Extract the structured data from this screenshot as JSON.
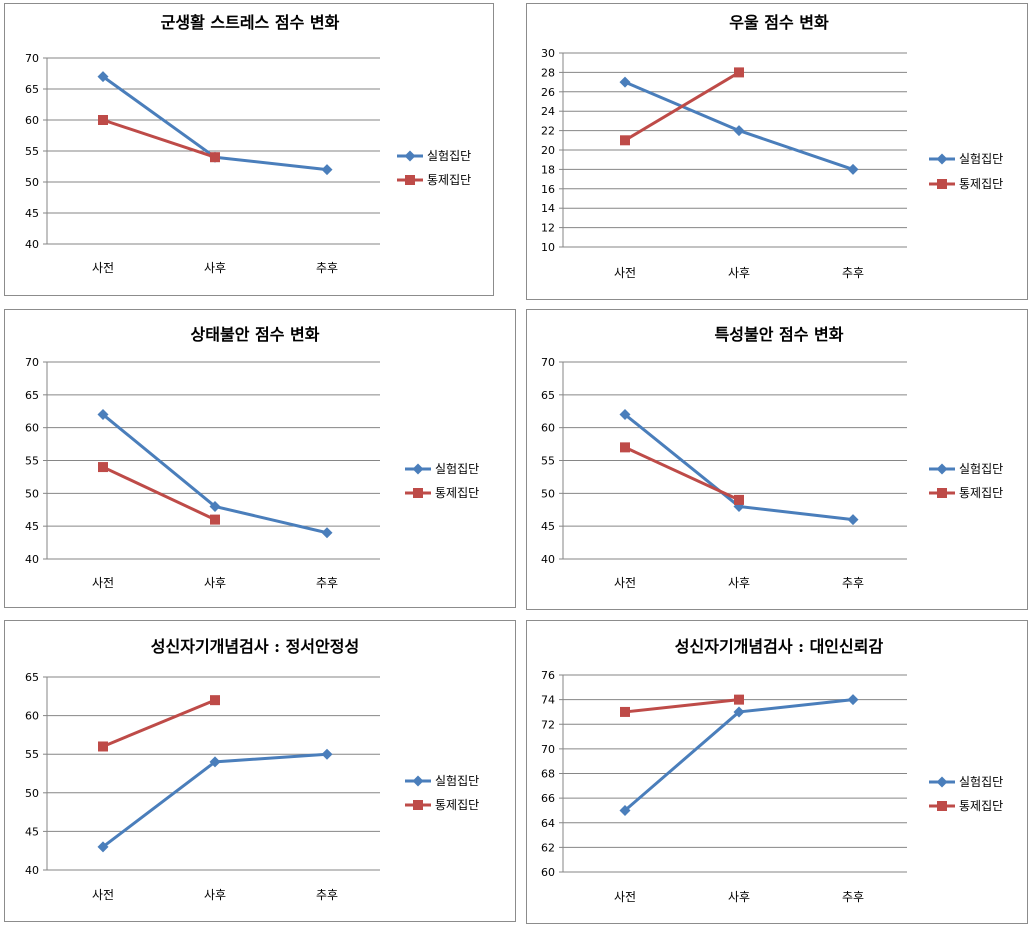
{
  "chart_data": [
    {
      "type": "line",
      "title": "군생활 스트레스 점수 변화",
      "categories": [
        "사전",
        "사후",
        "추후"
      ],
      "ylim": [
        40,
        70
      ],
      "yticks": [
        40,
        45,
        50,
        55,
        60,
        65,
        70
      ],
      "series": [
        {
          "name": "실험집단",
          "values": [
            67,
            54,
            52
          ]
        },
        {
          "name": "통제집단",
          "values": [
            60,
            54,
            null
          ]
        }
      ],
      "grid": true,
      "legend": "right"
    },
    {
      "type": "line",
      "title": "우울 점수 변화",
      "categories": [
        "사전",
        "사후",
        "추후"
      ],
      "ylim": [
        10,
        30
      ],
      "yticks": [
        10,
        12,
        14,
        16,
        18,
        20,
        22,
        24,
        26,
        28,
        30
      ],
      "series": [
        {
          "name": "실험집단",
          "values": [
            27,
            22,
            18
          ]
        },
        {
          "name": "통제집단",
          "values": [
            21,
            28,
            null
          ]
        }
      ],
      "grid": true,
      "legend": "right"
    },
    {
      "type": "line",
      "title": "상태불안 점수 변화",
      "categories": [
        "사전",
        "사후",
        "추후"
      ],
      "ylim": [
        40,
        70
      ],
      "yticks": [
        40,
        45,
        50,
        55,
        60,
        65,
        70
      ],
      "series": [
        {
          "name": "실험집단",
          "values": [
            62,
            48,
            44
          ]
        },
        {
          "name": "통제집단",
          "values": [
            54,
            46,
            null
          ]
        }
      ],
      "grid": true,
      "legend": "right"
    },
    {
      "type": "line",
      "title": "특성불안 점수 변화",
      "categories": [
        "사전",
        "사후",
        "추후"
      ],
      "ylim": [
        40,
        70
      ],
      "yticks": [
        40,
        45,
        50,
        55,
        60,
        65,
        70
      ],
      "series": [
        {
          "name": "실험집단",
          "values": [
            62,
            48,
            46
          ]
        },
        {
          "name": "통제집단",
          "values": [
            57,
            49,
            null
          ]
        }
      ],
      "grid": true,
      "legend": "right"
    },
    {
      "type": "line",
      "title": "성신자기개념검사 : 정서안정성",
      "categories": [
        "사전",
        "사후",
        "추후"
      ],
      "ylim": [
        40,
        65
      ],
      "yticks": [
        40,
        45,
        50,
        55,
        60,
        65
      ],
      "series": [
        {
          "name": "실험집단",
          "values": [
            43,
            54,
            55
          ]
        },
        {
          "name": "통제집단",
          "values": [
            56,
            62,
            null
          ]
        }
      ],
      "grid": true,
      "legend": "right"
    },
    {
      "type": "line",
      "title": "성신자기개념검사 : 대인신뢰감",
      "categories": [
        "사전",
        "사후",
        "추후"
      ],
      "ylim": [
        60,
        76
      ],
      "yticks": [
        60,
        62,
        64,
        66,
        68,
        70,
        72,
        74,
        76
      ],
      "series": [
        {
          "name": "실험집단",
          "values": [
            65,
            73,
            74
          ]
        },
        {
          "name": "통제집단",
          "values": [
            73,
            74,
            null
          ]
        }
      ],
      "grid": true,
      "legend": "right"
    }
  ],
  "colors": {
    "실험집단": "#4a7ebb",
    "통제집단": "#be4b48"
  },
  "markers": {
    "실험집단": "diamond",
    "통제집단": "square"
  }
}
